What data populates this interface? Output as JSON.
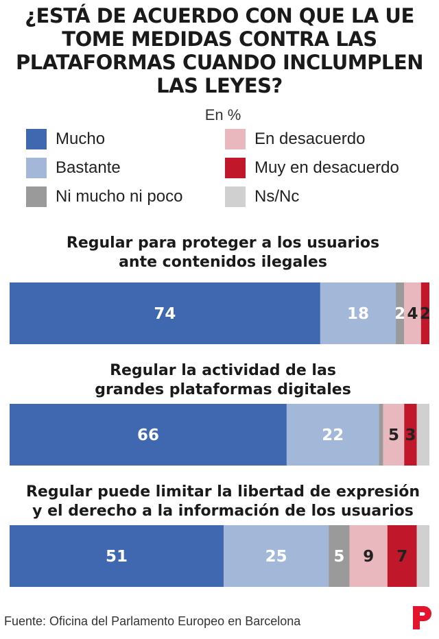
{
  "title": [
    "¿ESTÁ DE ACUERDO CON QUE LA UE",
    "TOME MEDIDAS CONTRA LAS",
    "PLATAFORMAS CUANDO INCLUMPLEN",
    "LAS LEYES?"
  ],
  "subtitle": "En %",
  "colors": {
    "mucho": "#3f68b0",
    "bastante": "#a3b8d8",
    "ni": "#9a9a9a",
    "desacuerdo": "#e9b8be",
    "muy_desacuerdo": "#c0172a",
    "nsnc": "#d0d0d0"
  },
  "legend": [
    {
      "label": "Mucho",
      "color": "#3f68b0"
    },
    {
      "label": "Bastante",
      "color": "#a3b8d8"
    },
    {
      "label": "Ni mucho ni poco",
      "color": "#9a9a9a"
    },
    {
      "label": "En desacuerdo",
      "color": "#e9b8be"
    },
    {
      "label": "Muy en desacuerdo",
      "color": "#c0172a"
    },
    {
      "label": "Ns/Nc",
      "color": "#d0d0d0"
    }
  ],
  "chart_data": {
    "type": "bar",
    "stacked": true,
    "orientation": "horizontal",
    "xlim": [
      0,
      100
    ],
    "categories": [
      "Regular para proteger a los usuarios ante contenidos ilegales",
      "Regular la actividad de las grandes plataformas digitales",
      "Regular puede limitar la libertad de expresión y el derecho a la información de los usuarios"
    ],
    "category_lines": [
      [
        "Regular para proteger a los usuarios",
        "ante contenidos ilegales"
      ],
      [
        "Regular la actividad de las",
        "grandes plataformas digitales"
      ],
      [
        "Regular puede limitar la libertad de expresión",
        "y el derecho a la información de los usuarios"
      ]
    ],
    "series": [
      {
        "name": "Mucho",
        "values": [
          74,
          66,
          51
        ],
        "labels": [
          "74",
          "66",
          "51"
        ]
      },
      {
        "name": "Bastante",
        "values": [
          18,
          22,
          25
        ],
        "labels": [
          "18",
          "22",
          "25"
        ]
      },
      {
        "name": "Ni mucho ni poco",
        "values": [
          2,
          1,
          5
        ],
        "labels": [
          "2",
          "",
          "5"
        ]
      },
      {
        "name": "En desacuerdo",
        "values": [
          4,
          5,
          9
        ],
        "labels": [
          "4",
          "5",
          "9"
        ]
      },
      {
        "name": "Muy en desacuerdo",
        "values": [
          2,
          3,
          7
        ],
        "labels": [
          "2",
          "3",
          "7"
        ]
      },
      {
        "name": "Ns/Nc",
        "values": [
          0,
          3,
          3
        ],
        "labels": [
          "",
          "",
          ""
        ]
      }
    ]
  },
  "source": "Fuente: Oficina del Parlamento Europeo en Barcelona",
  "logo_letter": "P"
}
